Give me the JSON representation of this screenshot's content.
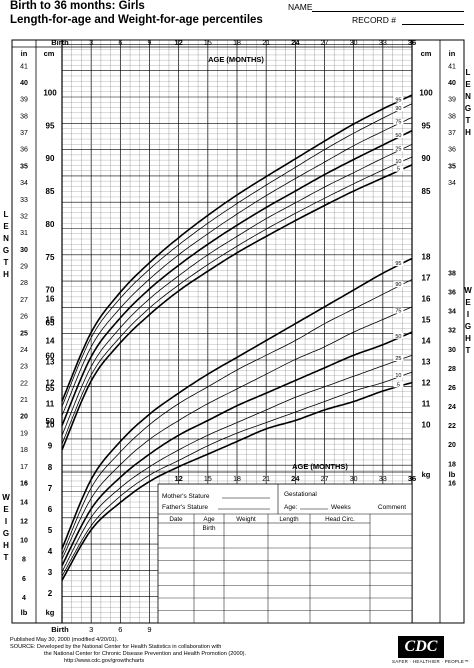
{
  "header": {
    "title_line1": "Birth to 36 months: Girls",
    "title_line2": "Length-for-age and Weight-for-age percentiles",
    "name_label": "NAME",
    "record_label": "RECORD #"
  },
  "footer": {
    "published": "Published May 30, 2000 (modified 4/20/01).",
    "source1": "SOURCE: Developed by the National Center for Health Statistics in collaboration with",
    "source2": "the National Center for Chronic Disease Prevention and Health Promotion (2000).",
    "url": "http://www.cdc.gov/growthcharts",
    "logo": "CDC",
    "tagline": "SAFER · HEALTHIER · PEOPLE™"
  },
  "record_table": {
    "mothers_stature": "Mother's Stature",
    "fathers_stature": "Father's Stature",
    "gestational": "Gestational",
    "age": "Age:",
    "weeks": "Weeks",
    "comment": "Comment",
    "columns": [
      "Date",
      "Age",
      "Weight",
      "Length",
      "Head  Circ."
    ],
    "first_row_age": "Birth",
    "rows": 8
  },
  "chart_data": [
    {
      "type": "line",
      "title": "Length-for-age",
      "xlabel": "AGE (MONTHS)",
      "ylabel": "LENGTH",
      "x_ticks": [
        "Birth",
        "3",
        "6",
        "9",
        "12",
        "15",
        "18",
        "21",
        "24",
        "27",
        "30",
        "33",
        "36"
      ],
      "x_tick_values": [
        0,
        3,
        6,
        9,
        12,
        15,
        18,
        21,
        24,
        27,
        30,
        33,
        36
      ],
      "x_range": [
        0,
        36
      ],
      "y_cm_ticks": [
        50,
        55,
        60,
        65,
        70,
        75,
        80,
        85,
        90,
        95,
        100
      ],
      "y_cm_range": [
        45,
        102
      ],
      "y_in_ticks": [
        16,
        17,
        18,
        19,
        20,
        21,
        22,
        23,
        24,
        25,
        26,
        27,
        28,
        29,
        30,
        31,
        32,
        33,
        34,
        35,
        36,
        37,
        38,
        39,
        40,
        41
      ],
      "unit_left": "in",
      "unit_right": "cm",
      "x": [
        0,
        3,
        6,
        9,
        12,
        15,
        18,
        21,
        24,
        27,
        30,
        33,
        36
      ],
      "series": [
        {
          "name": "95",
          "values": [
            53.0,
            63.5,
            69.6,
            74.1,
            77.9,
            81.3,
            84.4,
            87.2,
            89.9,
            92.6,
            95.2,
            97.5,
            99.6
          ]
        },
        {
          "name": "90",
          "values": [
            52.2,
            62.7,
            68.7,
            73.1,
            76.8,
            80.1,
            83.1,
            85.9,
            88.6,
            91.3,
            93.8,
            96.1,
            98.3
          ]
        },
        {
          "name": "75",
          "values": [
            50.8,
            61.3,
            67.2,
            71.6,
            75.3,
            78.5,
            81.5,
            84.3,
            86.9,
            89.4,
            91.9,
            94.1,
            96.2
          ]
        },
        {
          "name": "50",
          "values": [
            49.3,
            59.8,
            65.7,
            70.1,
            73.7,
            76.9,
            79.8,
            82.5,
            85.0,
            87.5,
            89.8,
            92.0,
            94.2
          ]
        },
        {
          "name": "25",
          "values": [
            47.8,
            58.3,
            64.2,
            68.6,
            72.1,
            75.3,
            78.1,
            80.8,
            83.2,
            85.6,
            87.8,
            90.0,
            92.1
          ]
        },
        {
          "name": "10",
          "values": [
            46.5,
            57.0,
            62.8,
            67.2,
            70.7,
            73.8,
            76.6,
            79.2,
            81.6,
            83.9,
            86.1,
            88.2,
            90.2
          ]
        },
        {
          "name": "5",
          "values": [
            45.6,
            56.1,
            61.9,
            66.2,
            69.8,
            72.8,
            75.6,
            78.1,
            80.5,
            82.8,
            85.0,
            87.0,
            89.0
          ]
        }
      ]
    },
    {
      "type": "line",
      "title": "Weight-for-age",
      "xlabel": "AGE (MONTHS)",
      "ylabel": "WEIGHT",
      "x_ticks": [
        "12",
        "15",
        "18",
        "21",
        "24",
        "27",
        "30",
        "33",
        "36"
      ],
      "x_range": [
        0,
        36
      ],
      "y_kg_ticks": [
        2,
        3,
        4,
        5,
        6,
        7,
        8,
        9,
        10,
        11,
        12,
        13,
        14,
        15,
        16,
        17,
        18
      ],
      "y_kg_range": [
        1.5,
        18.5
      ],
      "y_lb_left_ticks": [
        4,
        6,
        8,
        10,
        12,
        14,
        16
      ],
      "y_lb_right_ticks": [
        16,
        18,
        20,
        22,
        24,
        26,
        28,
        30,
        32,
        34,
        36,
        38
      ],
      "unit_left": "lb",
      "unit_right": "kg",
      "x": [
        0,
        3,
        6,
        9,
        12,
        15,
        18,
        21,
        24,
        27,
        30,
        33,
        36
      ],
      "series": [
        {
          "name": "95",
          "values": [
            4.1,
            7.4,
            9.2,
            10.5,
            11.5,
            12.4,
            13.2,
            14.0,
            14.8,
            15.6,
            16.4,
            17.2,
            17.9
          ]
        },
        {
          "name": "90",
          "values": [
            3.8,
            7.0,
            8.7,
            10.0,
            11.0,
            11.8,
            12.6,
            13.3,
            14.0,
            14.8,
            15.5,
            16.2,
            16.9
          ]
        },
        {
          "name": "75",
          "values": [
            3.6,
            6.5,
            8.1,
            9.3,
            10.2,
            11.0,
            11.7,
            12.4,
            13.1,
            13.7,
            14.4,
            15.0,
            15.6
          ]
        },
        {
          "name": "50",
          "values": [
            3.3,
            6.0,
            7.5,
            8.6,
            9.5,
            10.2,
            10.9,
            11.5,
            12.1,
            12.7,
            13.3,
            13.8,
            14.4
          ]
        },
        {
          "name": "25",
          "values": [
            3.0,
            5.6,
            7.0,
            8.0,
            8.8,
            9.5,
            10.1,
            10.7,
            11.3,
            11.8,
            12.3,
            12.8,
            13.3
          ]
        },
        {
          "name": "10",
          "values": [
            2.8,
            5.2,
            6.6,
            7.6,
            8.3,
            9.0,
            9.6,
            10.1,
            10.6,
            11.1,
            11.6,
            12.0,
            12.5
          ]
        },
        {
          "name": "5",
          "values": [
            2.6,
            5.0,
            6.3,
            7.3,
            8.0,
            8.6,
            9.2,
            9.8,
            10.2,
            10.7,
            11.1,
            11.6,
            12.0
          ]
        }
      ]
    }
  ],
  "side_labels": {
    "length": [
      "L",
      "E",
      "N",
      "G",
      "T",
      "H"
    ],
    "weight": [
      "W",
      "E",
      "I",
      "G",
      "H",
      "T"
    ]
  },
  "colors": {
    "grid_major": "#000000",
    "grid_minor": "#6a6a6a",
    "curve": "#000000"
  }
}
